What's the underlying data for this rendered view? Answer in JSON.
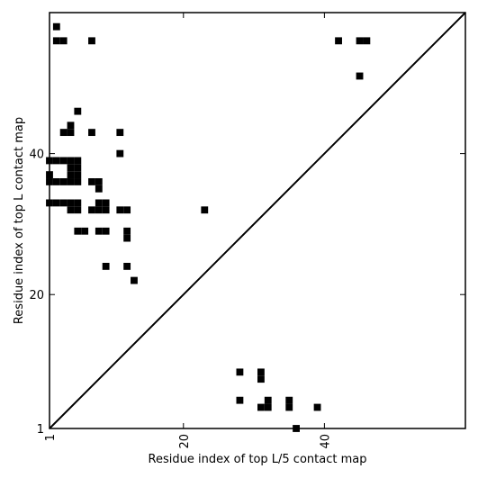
{
  "chart_data": {
    "type": "heatmap",
    "title": "",
    "xlabel": "Residue index of top L/5 contact map",
    "ylabel": "Residue index of top L contact map",
    "xlim": [
      1,
      60
    ],
    "ylim": [
      1,
      60
    ],
    "xticks": [
      1,
      20,
      40
    ],
    "yticks": [
      1,
      20,
      40
    ],
    "xtick_labels": [
      "1",
      "20",
      "40"
    ],
    "ytick_labels": [
      "1",
      "20",
      "40"
    ],
    "x_tick_rotation_deg": -90,
    "grid": false,
    "cell_color": "#000000",
    "background_color": "#ffffff",
    "diagonal_line": true,
    "upper_left_cells": [
      [
        2,
        58
      ],
      [
        2,
        56
      ],
      [
        3,
        56
      ],
      [
        7,
        56
      ],
      [
        42,
        56
      ],
      [
        45,
        56
      ],
      [
        46,
        56
      ],
      [
        45,
        51
      ],
      [
        5,
        46
      ],
      [
        4,
        44
      ],
      [
        3,
        43
      ],
      [
        4,
        43
      ],
      [
        7,
        43
      ],
      [
        11,
        43
      ],
      [
        11,
        40
      ],
      [
        1,
        39
      ],
      [
        2,
        39
      ],
      [
        3,
        39
      ],
      [
        4,
        39
      ],
      [
        5,
        39
      ],
      [
        4,
        38
      ],
      [
        5,
        38
      ],
      [
        1,
        37
      ],
      [
        4,
        37
      ],
      [
        5,
        37
      ],
      [
        1,
        36
      ],
      [
        2,
        36
      ],
      [
        3,
        36
      ],
      [
        4,
        36
      ],
      [
        5,
        36
      ],
      [
        7,
        36
      ],
      [
        8,
        36
      ],
      [
        8,
        35
      ],
      [
        1,
        33
      ],
      [
        2,
        33
      ],
      [
        3,
        33
      ],
      [
        4,
        33
      ],
      [
        5,
        33
      ],
      [
        8,
        33
      ],
      [
        9,
        33
      ],
      [
        4,
        32
      ],
      [
        5,
        32
      ],
      [
        7,
        32
      ],
      [
        8,
        32
      ],
      [
        9,
        32
      ],
      [
        11,
        32
      ],
      [
        12,
        32
      ],
      [
        23,
        32
      ],
      [
        5,
        29
      ],
      [
        6,
        29
      ],
      [
        8,
        29
      ],
      [
        9,
        29
      ],
      [
        12,
        29
      ],
      [
        12,
        28
      ],
      [
        9,
        24
      ],
      [
        12,
        24
      ],
      [
        13,
        22
      ]
    ],
    "lower_right_cells": [
      [
        28,
        9
      ],
      [
        31,
        9
      ],
      [
        31,
        8
      ],
      [
        28,
        5
      ],
      [
        32,
        5
      ],
      [
        35,
        5
      ],
      [
        31,
        4
      ],
      [
        32,
        4
      ],
      [
        35,
        4
      ],
      [
        39,
        4
      ],
      [
        36,
        1
      ]
    ]
  }
}
